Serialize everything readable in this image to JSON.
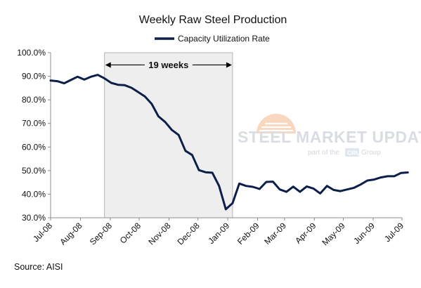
{
  "chart_data": {
    "type": "line",
    "title": "Weekly Raw Steel Production",
    "xlabel": "",
    "ylabel": "",
    "ylim": [
      30,
      100
    ],
    "y_ticks": [
      "30.0%",
      "40.0%",
      "50.0%",
      "60.0%",
      "70.0%",
      "80.0%",
      "90.0%",
      "100.0%"
    ],
    "y_tick_values": [
      30,
      40,
      50,
      60,
      70,
      80,
      90,
      100
    ],
    "x_tick_labels": [
      "Jul-08",
      "Aug-08",
      "Sep-08",
      "Oct-08",
      "Nov-08",
      "Dec-08",
      "Jan-09",
      "Feb-09",
      "Mar-09",
      "Apr-09",
      "May-09",
      "Jun-09",
      "Jul-09"
    ],
    "x_tick_dates": [
      "2008-07-01",
      "2008-08-01",
      "2008-09-01",
      "2008-10-01",
      "2008-11-01",
      "2008-12-01",
      "2009-01-01",
      "2009-02-01",
      "2009-03-01",
      "2009-04-01",
      "2009-05-01",
      "2009-06-01",
      "2009-07-01"
    ],
    "x_range": [
      "2008-07-01",
      "2009-07-01"
    ],
    "legend": {
      "position": "top-center"
    },
    "grid": false,
    "series": [
      {
        "name": "Capacity Utilization Rate",
        "color": "#0c1f4a",
        "x": [
          "2008-07-01",
          "2008-07-08",
          "2008-07-15",
          "2008-07-22",
          "2008-07-29",
          "2008-08-05",
          "2008-08-12",
          "2008-08-19",
          "2008-08-26",
          "2008-09-02",
          "2008-09-09",
          "2008-09-16",
          "2008-09-23",
          "2008-09-30",
          "2008-10-07",
          "2008-10-14",
          "2008-10-21",
          "2008-10-28",
          "2008-11-04",
          "2008-11-11",
          "2008-11-18",
          "2008-11-25",
          "2008-12-02",
          "2008-12-09",
          "2008-12-16",
          "2008-12-23",
          "2008-12-30",
          "2009-01-06",
          "2009-01-13",
          "2009-01-20",
          "2009-01-27",
          "2009-02-03",
          "2009-02-10",
          "2009-02-17",
          "2009-02-24",
          "2009-03-03",
          "2009-03-10",
          "2009-03-17",
          "2009-03-24",
          "2009-03-31",
          "2009-04-07",
          "2009-04-14",
          "2009-04-21",
          "2009-04-28",
          "2009-05-05",
          "2009-05-12",
          "2009-05-19",
          "2009-05-26",
          "2009-06-02",
          "2009-06-09",
          "2009-06-16",
          "2009-06-23",
          "2009-06-30",
          "2009-07-07"
        ],
        "values": [
          88.2,
          87.9,
          87.0,
          88.4,
          89.8,
          88.6,
          89.8,
          90.6,
          89.1,
          87.2,
          86.4,
          86.2,
          85.1,
          83.3,
          81.4,
          78.3,
          73.0,
          70.6,
          67.2,
          65.1,
          58.4,
          56.6,
          50.2,
          49.3,
          49.1,
          43.5,
          33.6,
          36.2,
          44.5,
          43.5,
          43.1,
          42.2,
          45.2,
          45.3,
          42.0,
          41.0,
          43.2,
          41.0,
          43.3,
          42.4,
          40.3,
          43.5,
          41.8,
          41.3,
          42.0,
          42.7,
          44.1,
          45.8,
          46.2,
          47.1,
          47.6,
          47.6,
          49.0,
          49.2
        ]
      }
    ],
    "annotations": [
      {
        "type": "shaded_span",
        "x_start": "2008-08-26",
        "x_end": "2009-01-06",
        "color": "#eeeeee"
      },
      {
        "type": "double_arrow",
        "text": "19 weeks",
        "x_start": "2008-08-26",
        "x_end": "2009-01-06",
        "y": 94.8
      }
    ]
  },
  "source_text": "Source: AISI",
  "watermark": {
    "text": "STEEL MARKET UPDATE",
    "subtext_pre": "part of the",
    "subtext_box": "CRU",
    "subtext_post": "Group"
  },
  "colors": {
    "line": "#0c1f4a",
    "shade": "#eeeeee",
    "axis": "#7f7f7f",
    "watermark_sun": "#f6b98f"
  }
}
